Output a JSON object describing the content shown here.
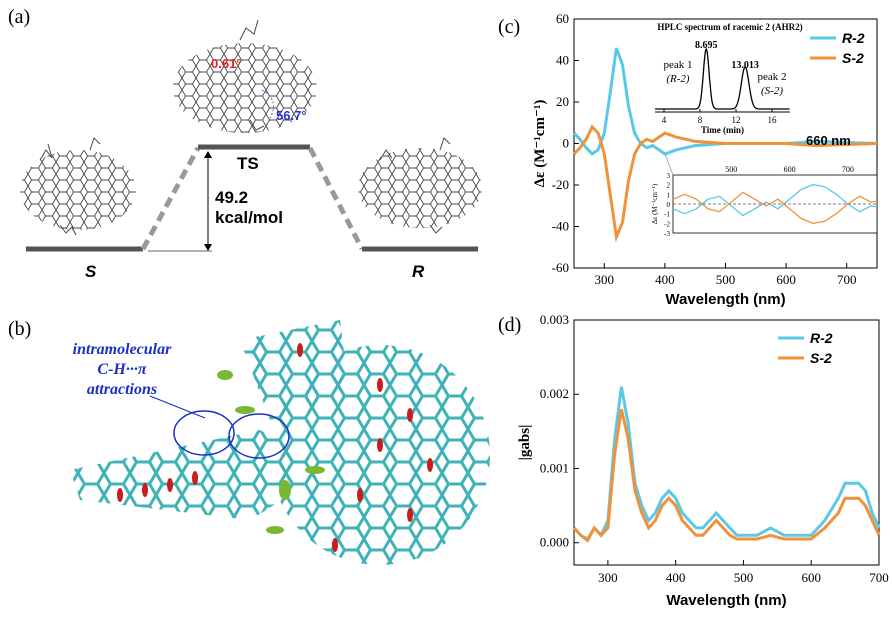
{
  "panels": {
    "a": "(a)",
    "b": "(b)",
    "c": "(c)",
    "d": "(d)"
  },
  "panel_a": {
    "ts_label": "TS",
    "barrier_value": "49.2",
    "barrier_unit": "kcal/mol",
    "left_label": "S",
    "right_label": "R",
    "angle_red": "0.61°",
    "angle_blue": "56.7°"
  },
  "panel_b": {
    "annotation_line1": "intramolecular",
    "annotation_line2": "C-H···π",
    "annotation_line3": "attractions"
  },
  "chart_data": [
    {
      "type": "line",
      "panel": "c",
      "xlabel": "Wavelength (nm)",
      "ylabel": "Δε (M⁻¹cm⁻¹)",
      "xlim": [
        250,
        750
      ],
      "ylim": [
        -60,
        60
      ],
      "x_ticks": [
        300,
        400,
        500,
        600,
        700
      ],
      "y_ticks": [
        -60,
        -40,
        -20,
        0,
        20,
        40,
        60
      ],
      "legend_position": "top-right",
      "annotation": "660 nm",
      "series": [
        {
          "name": "R-2",
          "color": "#5BC8E8",
          "x": [
            250,
            260,
            270,
            280,
            290,
            300,
            310,
            320,
            330,
            340,
            350,
            360,
            370,
            380,
            390,
            400,
            420,
            450,
            500,
            550,
            600,
            650,
            700,
            750
          ],
          "y": [
            5,
            2,
            -2,
            -5,
            -3,
            5,
            25,
            46,
            38,
            18,
            5,
            0,
            -2,
            -1,
            -3,
            -5,
            -3,
            -1,
            0,
            0,
            0,
            1,
            0.5,
            0
          ]
        },
        {
          "name": "S-2",
          "color": "#F0913C",
          "x": [
            250,
            260,
            270,
            280,
            290,
            300,
            310,
            320,
            330,
            340,
            350,
            360,
            370,
            380,
            390,
            400,
            420,
            450,
            500,
            550,
            600,
            650,
            700,
            750
          ],
          "y": [
            -5,
            -2,
            2,
            8,
            5,
            -5,
            -25,
            -45,
            -38,
            -18,
            -5,
            0,
            2,
            1,
            3,
            5,
            3,
            1,
            0,
            0,
            0,
            -1,
            -0.5,
            0
          ]
        }
      ],
      "inset_hplc": {
        "title": "HPLC spectrum of racemic 2 (AHR2)",
        "xlabel": "Time (min)",
        "x_ticks": [
          4,
          8,
          12,
          16
        ],
        "xlim": [
          3,
          18
        ],
        "peak1_time": "8.695",
        "peak1_label": "peak 1",
        "peak1_id": "(R-2)",
        "peak2_time": "13.013",
        "peak2_label": "peak 2",
        "peak2_id": "(S-2)",
        "peaks": [
          {
            "t": 8.695,
            "h": 1.0,
            "w": 0.45
          },
          {
            "t": 13.013,
            "h": 0.7,
            "w": 0.6
          }
        ]
      },
      "inset_zoom": {
        "ylabel": "Δε (M⁻¹cm⁻¹)",
        "xlim": [
          400,
          750
        ],
        "ylim": [
          -3,
          3
        ],
        "x_ticks": [
          500,
          600,
          700
        ],
        "y_ticks": [
          -3,
          -2,
          -1,
          0,
          1,
          2,
          3
        ],
        "series": [
          {
            "name": "R-2",
            "x": [
              400,
              420,
              440,
              460,
              480,
              500,
              520,
              540,
              560,
              580,
              600,
              620,
              640,
              660,
              680,
              700,
              720,
              740,
              750
            ],
            "y": [
              -0.5,
              -1.0,
              -0.5,
              0.5,
              0.8,
              -0.2,
              -1.2,
              -0.5,
              0.2,
              -0.5,
              0.5,
              1.5,
              2.0,
              1.8,
              1.0,
              0,
              -0.8,
              -0.2,
              -0.3
            ]
          },
          {
            "name": "S-2",
            "x": [
              400,
              420,
              440,
              460,
              480,
              500,
              520,
              540,
              560,
              580,
              600,
              620,
              640,
              660,
              680,
              700,
              720,
              740,
              750
            ],
            "y": [
              0.5,
              1.0,
              0.5,
              -0.5,
              -0.8,
              0.2,
              1.2,
              0.5,
              -0.2,
              0.5,
              -0.5,
              -1.5,
              -2.0,
              -1.8,
              -1.0,
              0,
              0.8,
              0.2,
              0.3
            ]
          }
        ]
      }
    },
    {
      "type": "line",
      "panel": "d",
      "xlabel": "Wavelength (nm)",
      "ylabel": "|gabs|",
      "xlim": [
        250,
        700
      ],
      "ylim": [
        -0.0003,
        0.003
      ],
      "x_ticks": [
        300,
        400,
        500,
        600,
        700
      ],
      "y_ticks": [
        "0.000",
        "0.001",
        "0.002",
        "0.003"
      ],
      "y_tick_values": [
        0,
        0.001,
        0.002,
        0.003
      ],
      "legend_position": "top-right",
      "series": [
        {
          "name": "R-2",
          "color": "#5BC8E8",
          "x": [
            250,
            260,
            270,
            280,
            290,
            300,
            310,
            320,
            330,
            340,
            350,
            360,
            370,
            380,
            390,
            400,
            410,
            420,
            430,
            440,
            450,
            460,
            470,
            480,
            490,
            500,
            520,
            540,
            560,
            580,
            600,
            620,
            640,
            650,
            660,
            670,
            680,
            690,
            700
          ],
          "y": [
            0.0002,
            0.0001,
            5e-05,
            0.0002,
            0.0001,
            0.0003,
            0.0014,
            0.0021,
            0.0016,
            0.0008,
            0.0005,
            0.0003,
            0.0004,
            0.0006,
            0.0007,
            0.0006,
            0.0004,
            0.0003,
            0.0002,
            0.0002,
            0.0003,
            0.0004,
            0.0003,
            0.0002,
            0.0001,
            0.0001,
            0.0001,
            0.0002,
            0.0001,
            0.0001,
            0.0001,
            0.0003,
            0.0006,
            0.0008,
            0.0008,
            0.0008,
            0.0007,
            0.0004,
            0.0002
          ]
        },
        {
          "name": "S-2",
          "color": "#F0913C",
          "x": [
            250,
            260,
            270,
            280,
            290,
            300,
            310,
            320,
            330,
            340,
            350,
            360,
            370,
            380,
            390,
            400,
            410,
            420,
            430,
            440,
            450,
            460,
            470,
            480,
            490,
            500,
            520,
            540,
            560,
            580,
            600,
            620,
            640,
            650,
            660,
            670,
            680,
            690,
            700
          ],
          "y": [
            0.0002,
            0.0001,
            3e-05,
            0.0002,
            0.0001,
            0.0002,
            0.0012,
            0.0018,
            0.0014,
            0.0007,
            0.0004,
            0.0002,
            0.0003,
            0.0005,
            0.0006,
            0.0005,
            0.0003,
            0.0002,
            0.0001,
            0.0001,
            0.0002,
            0.0003,
            0.0002,
            0.0001,
            5e-05,
            5e-05,
            5e-05,
            0.0001,
            5e-05,
            5e-05,
            5e-05,
            0.0002,
            0.0004,
            0.0006,
            0.0006,
            0.0006,
            0.0005,
            0.0003,
            0.0001
          ]
        }
      ]
    }
  ]
}
